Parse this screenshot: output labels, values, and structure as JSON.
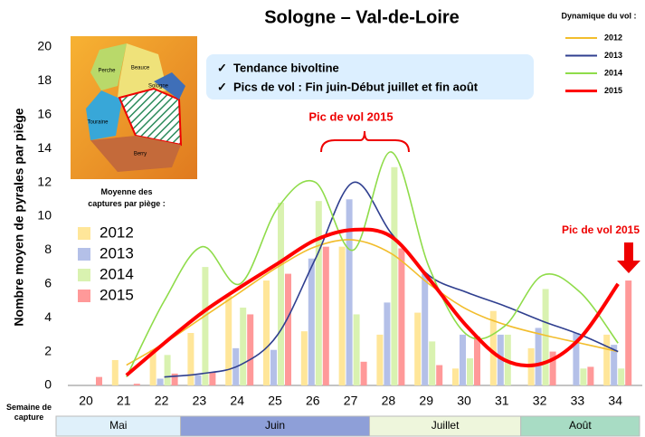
{
  "chart_data": {
    "type": "bar",
    "title": "Sologne – Val-de-Loire",
    "y_label": "Nombre moyen de pyrales par piège",
    "x_label": "Semaine de capture",
    "categories": [
      "20",
      "21",
      "22",
      "23",
      "24",
      "25",
      "26",
      "27",
      "28",
      "29",
      "30",
      "31",
      "32",
      "33",
      "34"
    ],
    "months": [
      "Mai",
      "Juin",
      "Juillet",
      "Août"
    ],
    "ylim": [
      0,
      20
    ],
    "yticks": [
      0,
      2,
      4,
      6,
      8,
      10,
      12,
      14,
      16,
      18,
      20
    ],
    "grid": false,
    "bar_legend_title": "Moyenne des captures par piège :",
    "series": [
      {
        "name": "2012",
        "color": "#ffe699",
        "values": [
          0,
          1.5,
          2.1,
          3.1,
          5.3,
          6.2,
          3.2,
          8.2,
          3.0,
          4.3,
          1.0,
          4.4,
          2.2,
          0,
          3.0
        ]
      },
      {
        "name": "2013",
        "color": "#b4c0e8",
        "values": [
          0,
          0,
          0.4,
          0.6,
          2.2,
          2.1,
          7.5,
          11.0,
          4.9,
          6.6,
          3.0,
          3.0,
          3.4,
          3.1,
          2.4
        ]
      },
      {
        "name": "2014",
        "color": "#d9f2b0",
        "values": [
          0,
          0,
          1.8,
          7.0,
          4.6,
          10.8,
          10.9,
          4.2,
          12.9,
          2.6,
          1.6,
          3.0,
          5.7,
          1.0,
          1.0
        ]
      },
      {
        "name": "2015",
        "color": "#ff9999",
        "values": [
          0.5,
          0.1,
          0.7,
          0.8,
          4.2,
          6.6,
          8.2,
          1.4,
          8.1,
          1.2,
          2.9,
          0,
          2.0,
          1.1,
          6.2
        ]
      }
    ],
    "line_legend_title": "Dynamique du vol :",
    "line_series": [
      {
        "name": "2012",
        "color": "#f2bd2c",
        "values": [
          null,
          1.2,
          2.5,
          4.0,
          5.5,
          7.0,
          8.2,
          8.6,
          7.8,
          6.0,
          4.5,
          3.6,
          3.0,
          2.5,
          2.0
        ]
      },
      {
        "name": "2013",
        "color": "#2f3f8f",
        "values": [
          null,
          null,
          0.5,
          0.7,
          1.2,
          3.0,
          7.5,
          12.0,
          9.0,
          6.5,
          5.5,
          4.7,
          3.8,
          3.0,
          2.0
        ]
      },
      {
        "name": "2014",
        "color": "#8fdc4a",
        "values": [
          null,
          0.5,
          5.0,
          8.2,
          6.0,
          10.5,
          12.0,
          8.0,
          13.8,
          7.0,
          3.0,
          3.5,
          6.5,
          5.5,
          2.5
        ]
      },
      {
        "name": "2015",
        "color": "#ff0000",
        "values": [
          null,
          0.6,
          2.5,
          4.3,
          5.8,
          7.2,
          8.6,
          9.2,
          8.8,
          6.3,
          3.5,
          1.5,
          1.3,
          2.8,
          6.0
        ]
      }
    ],
    "info_box": [
      "Tendance bivoltine",
      "Pics de vol : Fin juin-Début  juillet et fin août"
    ],
    "annotations": [
      "Pic de vol 2015",
      "Pic de vol 2015"
    ],
    "map_labels": [
      "Perche",
      "Beauce",
      "Touraine",
      "Sologne",
      "Berry"
    ]
  }
}
